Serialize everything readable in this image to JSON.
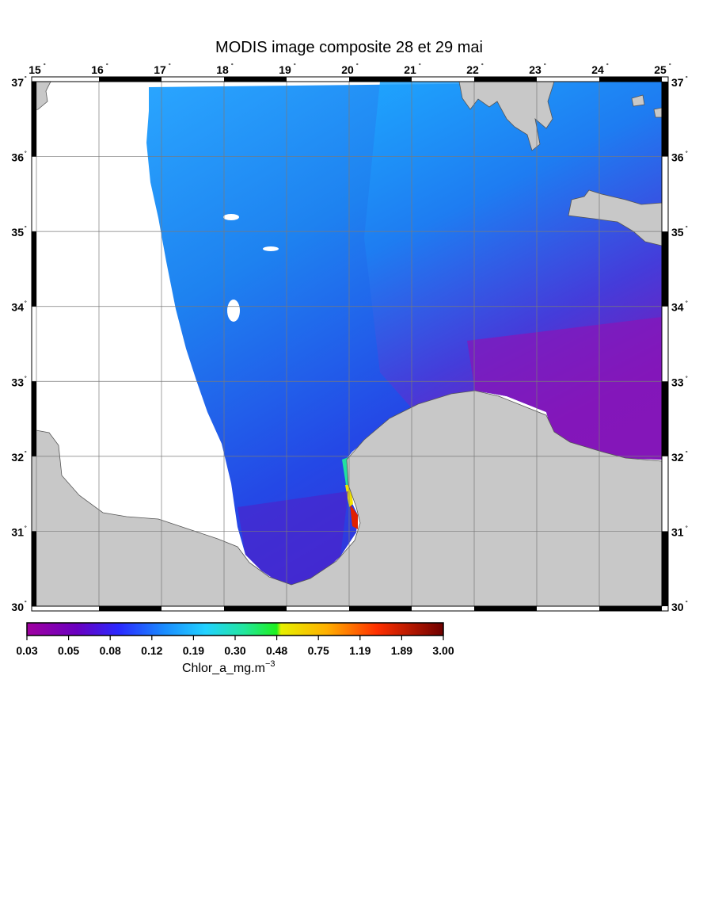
{
  "title": "MODIS image composite 28 et 29 mai",
  "map": {
    "lon_min": 15,
    "lon_max": 25,
    "lat_min": 30,
    "lat_max": 37,
    "lon_ticks": [
      15,
      16,
      17,
      18,
      19,
      20,
      21,
      22,
      23,
      24,
      25
    ],
    "lat_ticks": [
      30,
      31,
      32,
      33,
      34,
      35,
      36,
      37
    ],
    "degree_mark": "˚",
    "land_color": "#c8c8c8",
    "nodata_color": "#ffffff",
    "grid_color": "#7a7a7a",
    "layers": [
      "no-data",
      "land",
      "chlorophyll"
    ]
  },
  "colorbar": {
    "labels": [
      "0.03",
      "0.05",
      "0.08",
      "0.12",
      "0.19",
      "0.30",
      "0.48",
      "0.75",
      "1.19",
      "1.89",
      "3.00"
    ],
    "unit_label": "Chlor_a_mg.m",
    "unit_superscript": "−3",
    "colors": [
      "#9a009a",
      "#5a00c8",
      "#2040ff",
      "#1c8cff",
      "#22ccff",
      "#24e6a0",
      "#1eef1e",
      "#e8f200",
      "#ffaa00",
      "#ff2a00",
      "#7a0000"
    ]
  }
}
